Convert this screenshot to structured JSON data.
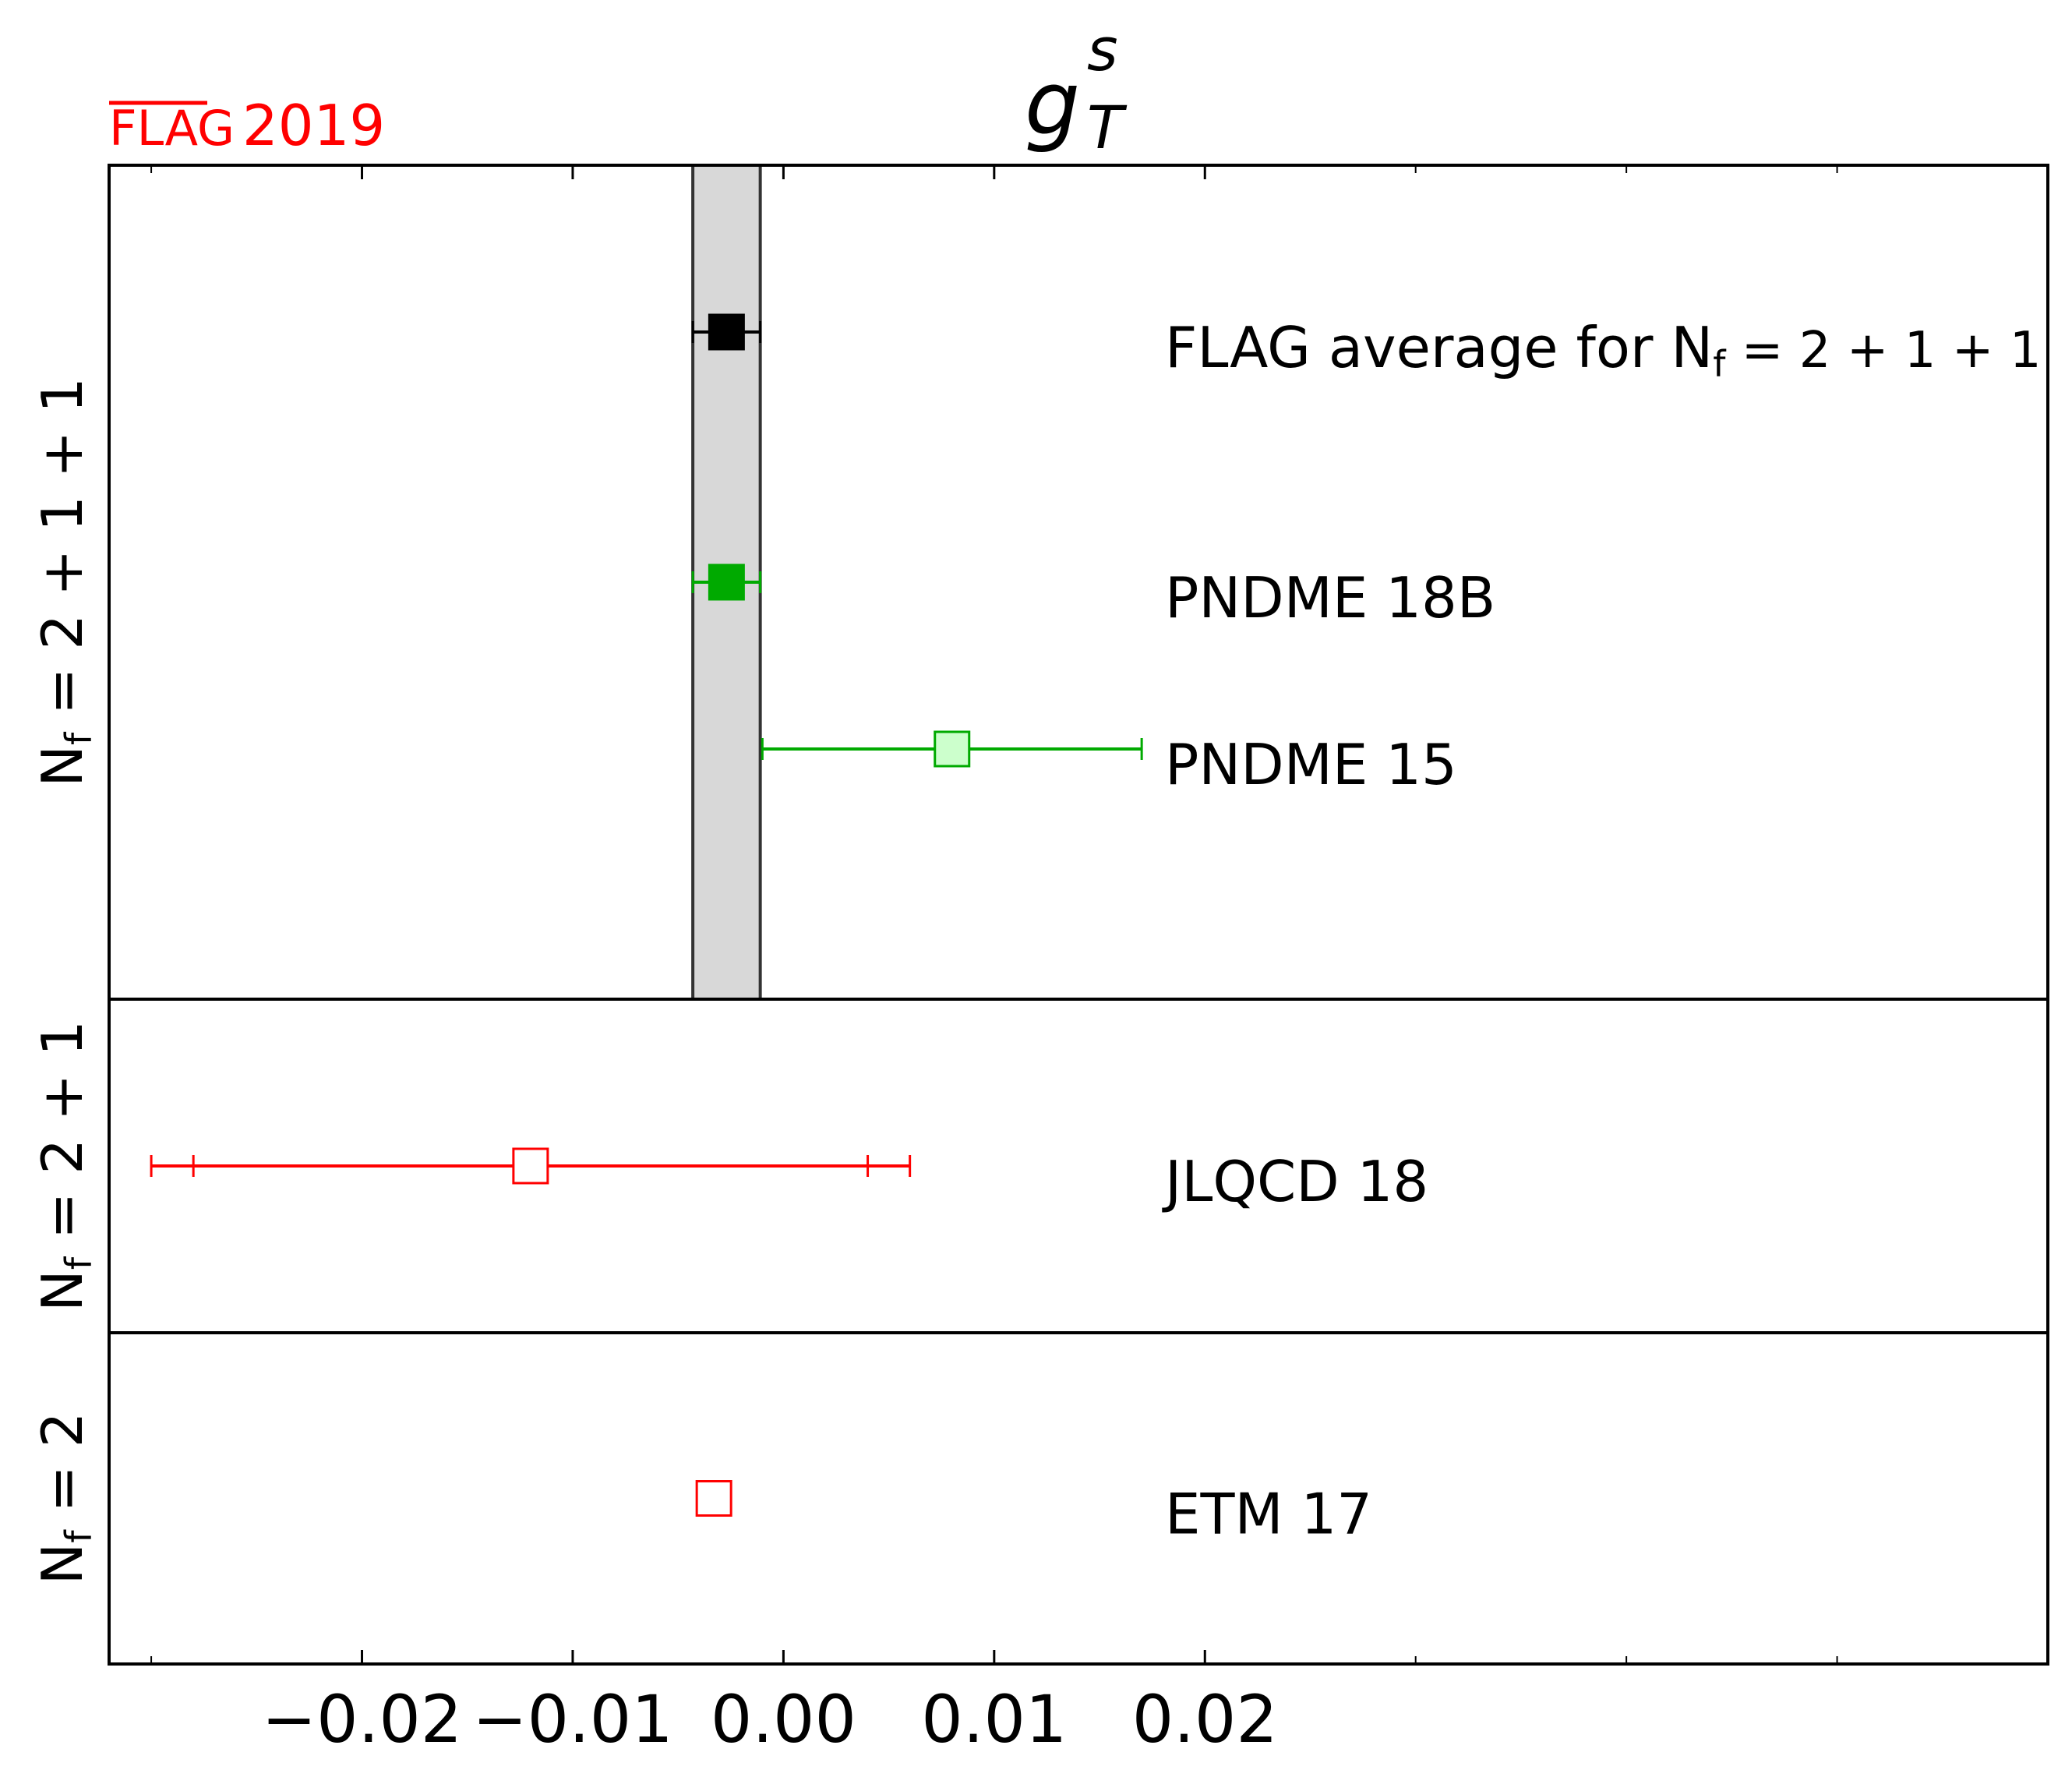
{
  "chart_data": {
    "type": "scatter",
    "title": {
      "base": "g",
      "sup": "s",
      "sub": "T"
    },
    "brand": {
      "flag": "FLAG",
      "year": "2019",
      "color": "#ff0000"
    },
    "xlim": [
      -0.032,
      0.06
    ],
    "xticks": [
      -0.02,
      -0.01,
      0.0,
      0.01,
      0.02
    ],
    "xtick_labels": [
      "−0.02",
      "−0.01",
      "0.00",
      "0.01",
      "0.02"
    ],
    "minor_xticks": [
      -0.03,
      0.03,
      0.04,
      0.05
    ],
    "grid": false,
    "band": {
      "min": -0.0043,
      "max": -0.0011,
      "color": "#d8d8d8",
      "panel": 0
    },
    "panels": [
      {
        "label": {
          "base": "N",
          "sub": "f",
          "rest": " = 2 + 1 + 1"
        },
        "rows": 5
      },
      {
        "label": {
          "base": "N",
          "sub": "f",
          "rest": " = 2 + 1"
        },
        "rows": 2
      },
      {
        "label": {
          "base": "N",
          "sub": "f",
          "rest": " = 2"
        },
        "rows": 2
      }
    ],
    "entries": [
      {
        "panel": 0,
        "row": 1,
        "name": "FLAG average for ",
        "name_sub_base": "N",
        "name_sub": "f",
        "name_tail": " = 2 + 1 + 1",
        "value": -0.0027,
        "err_stat": [
          0.0016,
          0.0016
        ],
        "err_tot": [
          0.0016,
          0.0016
        ],
        "color": "#000000",
        "fill": "#000000",
        "filled": true
      },
      {
        "panel": 0,
        "row": 2.5,
        "name": "PNDME 18B",
        "value": -0.0027,
        "err_stat": [
          0.0016,
          0.0016
        ],
        "err_tot": [
          0.0016,
          0.0016
        ],
        "color": "#00aa00",
        "fill": "#00aa00",
        "filled": true
      },
      {
        "panel": 0,
        "row": 3.5,
        "name": "PNDME 15",
        "value": 0.008,
        "err_stat": [
          0.009,
          0.009
        ],
        "err_tot": [
          0.009,
          0.009
        ],
        "color": "#00aa00",
        "fill": "#ccffcc",
        "filled": false
      },
      {
        "panel": 1,
        "row": 1,
        "name": "JLQCD 18",
        "value": -0.012,
        "err_stat": [
          0.016,
          0.016
        ],
        "err_tot": [
          0.018,
          0.018
        ],
        "color": "#ff0000",
        "fill": "#ffffff",
        "filled": false
      },
      {
        "panel": 2,
        "row": 1,
        "name": "ETM 17",
        "value": -0.0033,
        "err_stat": [
          0,
          0
        ],
        "err_tot": [
          0,
          0
        ],
        "color": "#ff0000",
        "fill": "#ffffff",
        "filled": false
      }
    ]
  }
}
